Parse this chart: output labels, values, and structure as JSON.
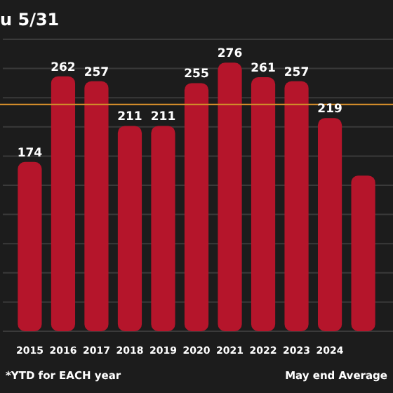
{
  "chart_data": {
    "type": "bar",
    "title": "u 5/31",
    "categories": [
      "2015",
      "2016",
      "2017",
      "2018",
      "2019",
      "2020",
      "2021",
      "2022",
      "2023",
      "2024",
      null
    ],
    "values": [
      174,
      262,
      257,
      211,
      211,
      255,
      276,
      261,
      257,
      219,
      160
    ],
    "value_labels": [
      "174",
      "262",
      "257",
      "211",
      "211",
      "255",
      "276",
      "261",
      "257",
      "219",
      null
    ],
    "color": "#b5152b",
    "ylim": [
      0,
      300
    ],
    "yticks": [
      {
        "value": 0,
        "label": null
      },
      {
        "value": 30,
        "label": null
      },
      {
        "value": 60,
        "label": null
      },
      {
        "value": 90,
        "label": null
      },
      {
        "value": 120,
        "label": null
      },
      {
        "value": 150,
        "label": null
      },
      {
        "value": 180,
        "label": null
      },
      {
        "value": 210,
        "label": null
      },
      {
        "value": 240,
        "label": null
      },
      {
        "value": 270,
        "label": null
      },
      {
        "value": 300,
        "label": null
      }
    ],
    "grid": "y",
    "tick_labels": "x",
    "ref_lines": [
      {
        "axis": "y",
        "value": 233,
        "color": "#d08a2a"
      }
    ],
    "annotations": [
      "*YTD for EACH year",
      "May end Average"
    ]
  }
}
